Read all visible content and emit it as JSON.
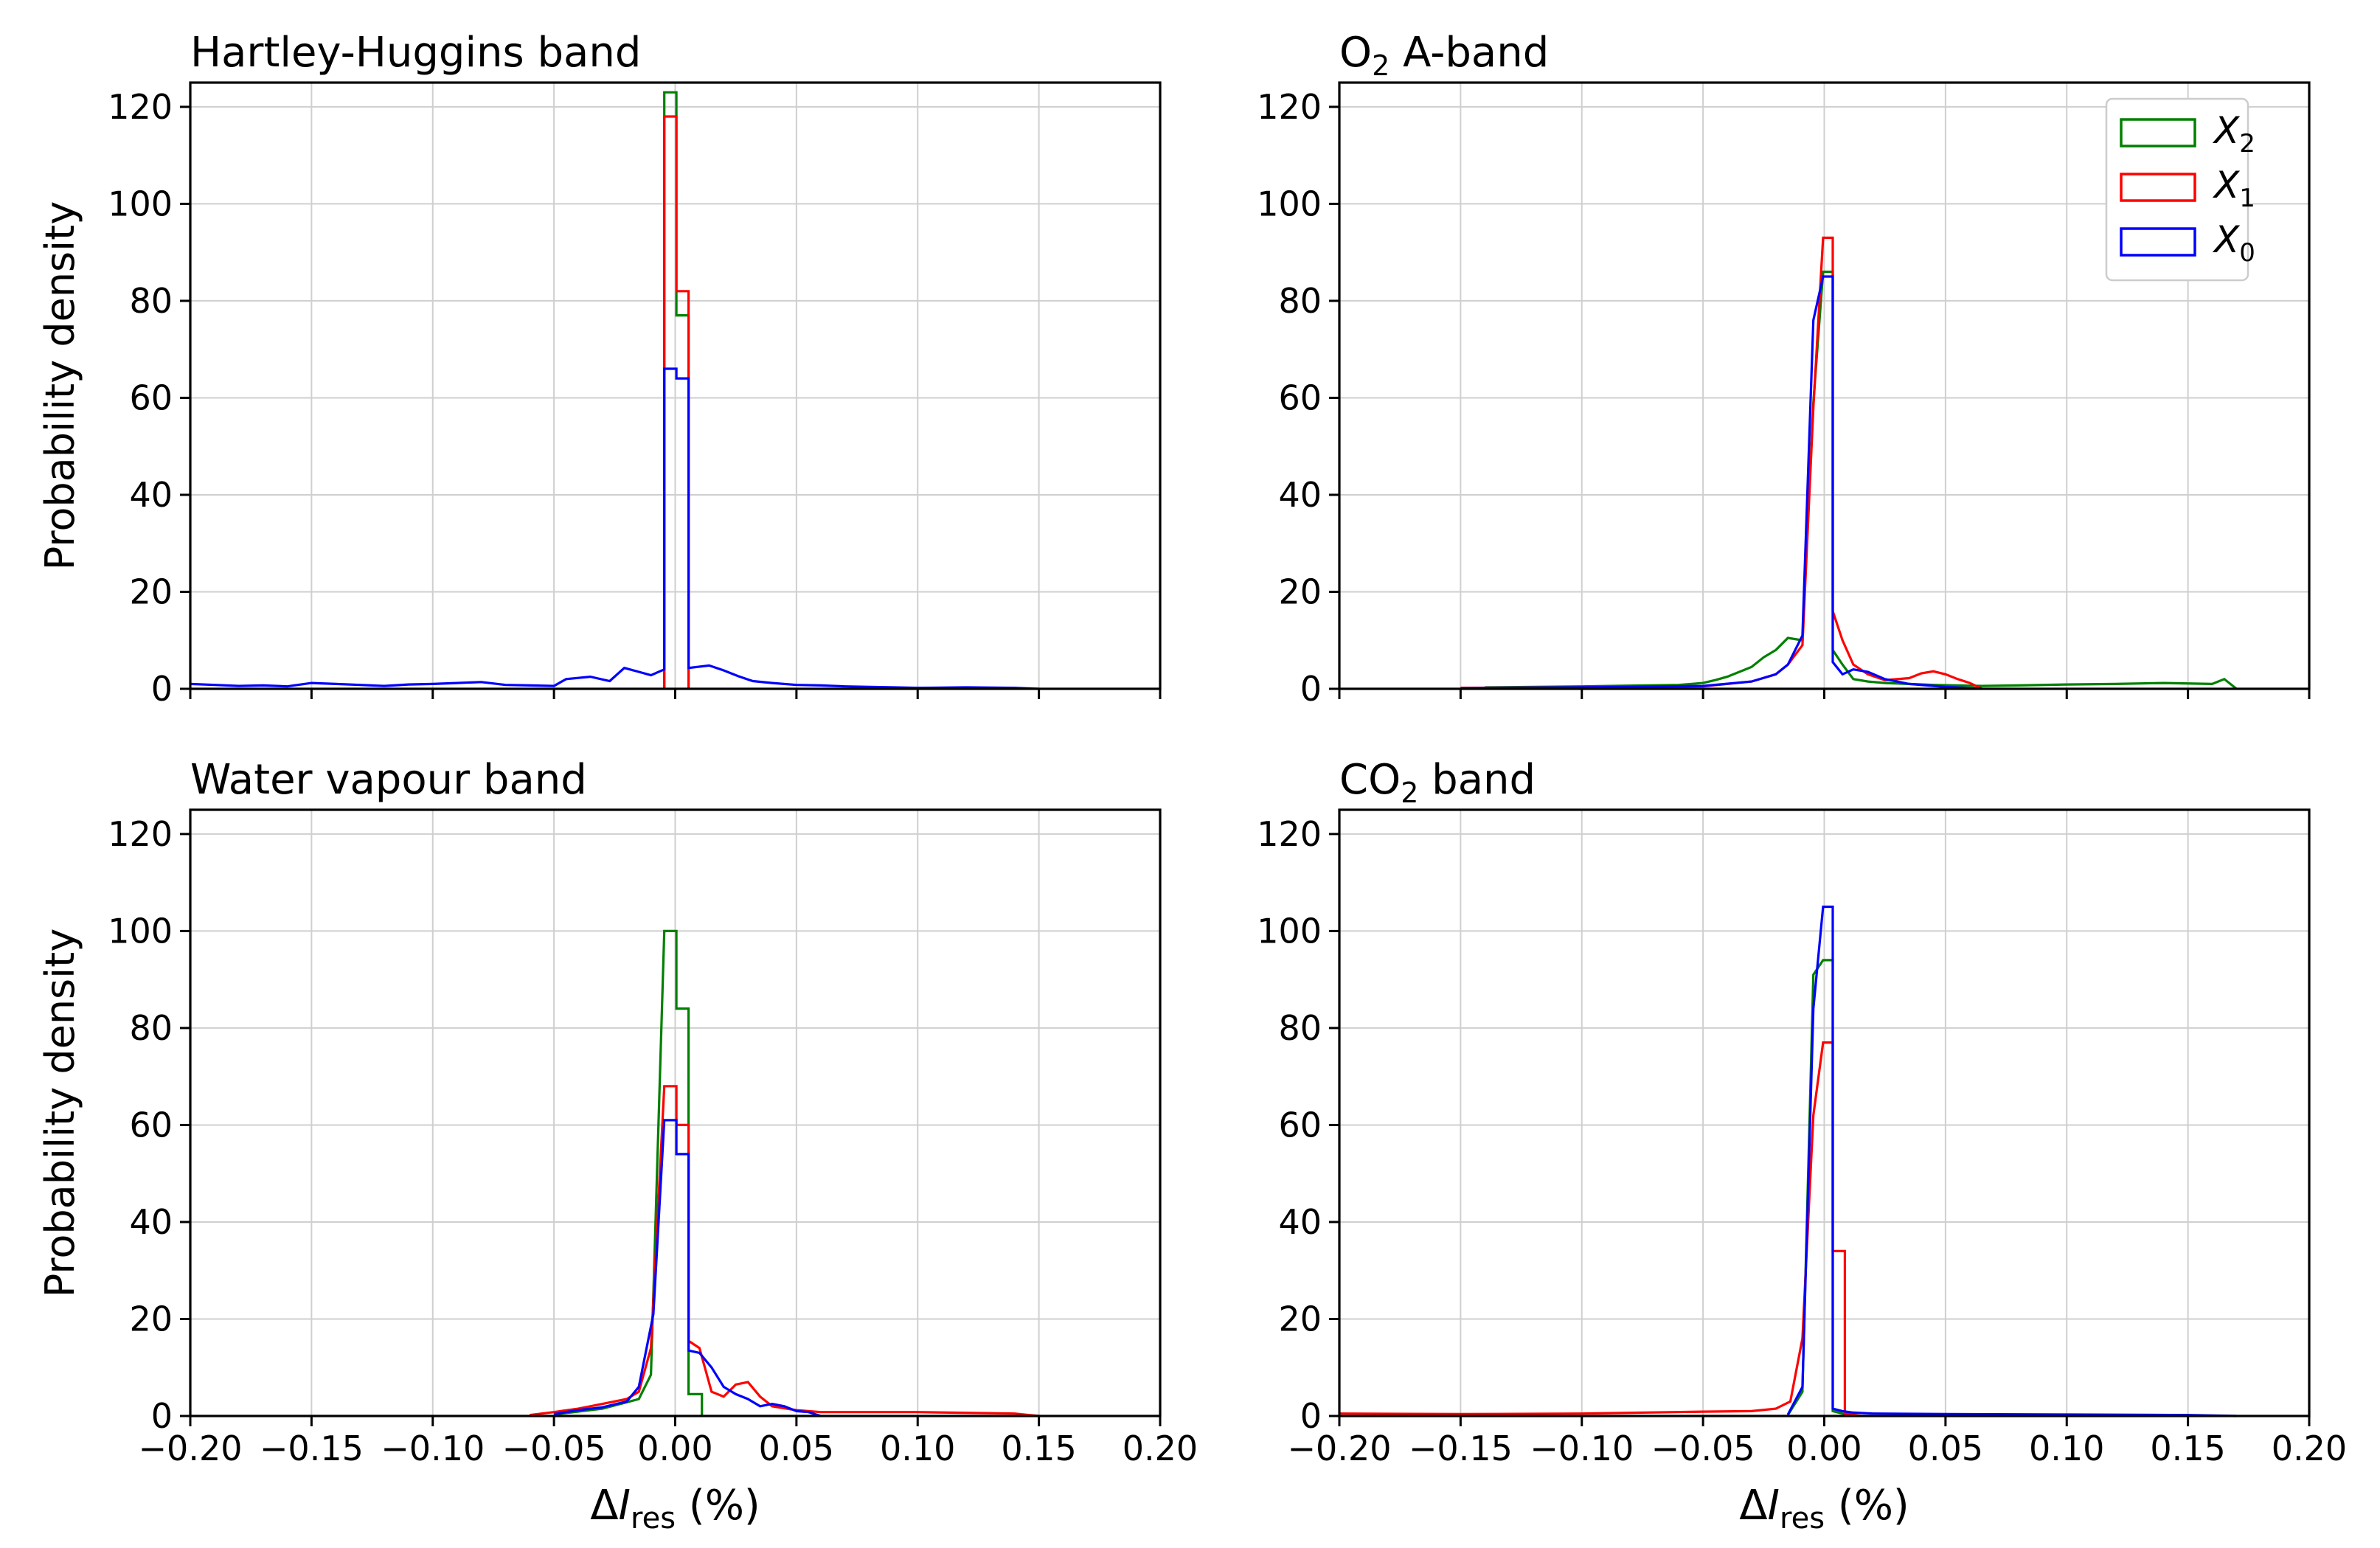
{
  "figure": {
    "shared_xlabel": "ΔI_res (%)",
    "ylabel": "Probability density",
    "xlim": [
      -0.2,
      0.2
    ],
    "ylim": [
      0,
      125
    ],
    "xticks": [
      -0.2,
      -0.15,
      -0.1,
      -0.05,
      0.0,
      0.05,
      0.1,
      0.15,
      0.2
    ],
    "xtick_labels": [
      "−0.20",
      "−0.15",
      "−0.10",
      "−0.05",
      "0.00",
      "0.05",
      "0.10",
      "0.15",
      "0.20"
    ],
    "yticks": [
      0,
      20,
      40,
      60,
      80,
      100,
      120
    ],
    "ytick_labels": [
      "0",
      "20",
      "40",
      "60",
      "80",
      "100",
      "120"
    ],
    "legend": [
      {
        "key": "X2",
        "label": "X",
        "sub": "2",
        "color": "#008000"
      },
      {
        "key": "X1",
        "label": "X",
        "sub": "1",
        "color": "#ff0000"
      },
      {
        "key": "X0",
        "label": "X",
        "sub": "0",
        "color": "#0000ff"
      }
    ],
    "legend_location": "top-right of O2 A-band panel"
  },
  "chart_data": [
    {
      "type": "bar",
      "histtype": "step",
      "title": "Hartley-Huggins band",
      "xlabel": "",
      "ylabel": "Probability density",
      "xlim": [
        -0.2,
        0.2
      ],
      "ylim": [
        0,
        125
      ],
      "grid": true,
      "series": [
        {
          "name": "X2",
          "color": "#008000",
          "points": [
            [
              -0.0045,
              0
            ],
            [
              -0.0045,
              123
            ],
            [
              0.0005,
              123
            ],
            [
              0.0005,
              77
            ],
            [
              0.0055,
              77
            ],
            [
              0.0055,
              0
            ]
          ]
        },
        {
          "name": "X1",
          "color": "#ff0000",
          "points": [
            [
              -0.0045,
              0
            ],
            [
              -0.0045,
              118
            ],
            [
              0.0005,
              118
            ],
            [
              0.0005,
              82
            ],
            [
              0.0055,
              82
            ],
            [
              0.0055,
              0
            ]
          ]
        },
        {
          "name": "X0",
          "color": "#0000ff",
          "points": [
            [
              -0.2,
              1.0
            ],
            [
              -0.19,
              0.8
            ],
            [
              -0.18,
              0.6
            ],
            [
              -0.17,
              0.7
            ],
            [
              -0.16,
              0.5
            ],
            [
              -0.15,
              1.2
            ],
            [
              -0.14,
              1.0
            ],
            [
              -0.13,
              0.8
            ],
            [
              -0.12,
              0.6
            ],
            [
              -0.11,
              0.9
            ],
            [
              -0.1,
              1.0
            ],
            [
              -0.09,
              1.2
            ],
            [
              -0.08,
              1.4
            ],
            [
              -0.07,
              0.8
            ],
            [
              -0.06,
              0.7
            ],
            [
              -0.05,
              0.6
            ],
            [
              -0.045,
              2.0
            ],
            [
              -0.035,
              2.5
            ],
            [
              -0.027,
              1.6
            ],
            [
              -0.021,
              4.3
            ],
            [
              -0.015,
              3.5
            ],
            [
              -0.01,
              2.8
            ],
            [
              -0.0045,
              4.0
            ],
            [
              -0.0045,
              66
            ],
            [
              0.0005,
              66
            ],
            [
              0.0005,
              64
            ],
            [
              0.0055,
              64
            ],
            [
              0.0055,
              4.3
            ],
            [
              0.014,
              4.8
            ],
            [
              0.02,
              3.8
            ],
            [
              0.026,
              2.6
            ],
            [
              0.032,
              1.6
            ],
            [
              0.04,
              1.2
            ],
            [
              0.05,
              0.8
            ],
            [
              0.06,
              0.7
            ],
            [
              0.07,
              0.5
            ],
            [
              0.08,
              0.4
            ],
            [
              0.09,
              0.3
            ],
            [
              0.1,
              0.2
            ],
            [
              0.12,
              0.3
            ],
            [
              0.14,
              0.2
            ],
            [
              0.15,
              0
            ]
          ]
        }
      ]
    },
    {
      "type": "bar",
      "histtype": "step",
      "title": "O2 A-band",
      "title_main": "O",
      "title_sub": "2",
      "title_rest": " A-band",
      "xlabel": "",
      "ylabel": "",
      "xlim": [
        -0.2,
        0.2
      ],
      "ylim": [
        0,
        125
      ],
      "grid": true,
      "series": [
        {
          "name": "X2",
          "color": "#008000",
          "points": [
            [
              -0.14,
              0.3
            ],
            [
              -0.1,
              0.5
            ],
            [
              -0.06,
              0.8
            ],
            [
              -0.05,
              1.2
            ],
            [
              -0.045,
              1.8
            ],
            [
              -0.04,
              2.5
            ],
            [
              -0.035,
              3.5
            ],
            [
              -0.03,
              4.5
            ],
            [
              -0.025,
              6.5
            ],
            [
              -0.02,
              8.0
            ],
            [
              -0.015,
              10.5
            ],
            [
              -0.009,
              10
            ],
            [
              -0.0045,
              59
            ],
            [
              -0.0005,
              86
            ],
            [
              0.0035,
              86
            ],
            [
              0.0035,
              8
            ],
            [
              0.0075,
              5
            ],
            [
              0.012,
              2
            ],
            [
              0.018,
              1.5
            ],
            [
              0.025,
              1.2
            ],
            [
              0.035,
              1.0
            ],
            [
              0.045,
              0.8
            ],
            [
              0.065,
              0.6
            ],
            [
              0.08,
              0.7
            ],
            [
              0.1,
              0.9
            ],
            [
              0.12,
              1.0
            ],
            [
              0.14,
              1.2
            ],
            [
              0.16,
              1.0
            ],
            [
              0.165,
              2.0
            ],
            [
              0.17,
              0
            ]
          ]
        },
        {
          "name": "X1",
          "color": "#ff0000",
          "points": [
            [
              -0.15,
              0.2
            ],
            [
              -0.1,
              0.3
            ],
            [
              -0.05,
              0.5
            ],
            [
              -0.03,
              1.5
            ],
            [
              -0.02,
              3.0
            ],
            [
              -0.015,
              5
            ],
            [
              -0.009,
              9
            ],
            [
              -0.0045,
              58
            ],
            [
              -0.0005,
              93
            ],
            [
              0.0035,
              93
            ],
            [
              0.0035,
              16
            ],
            [
              0.0075,
              10
            ],
            [
              0.012,
              5
            ],
            [
              0.018,
              3
            ],
            [
              0.025,
              1.8
            ],
            [
              0.035,
              2.2
            ],
            [
              0.04,
              3.2
            ],
            [
              0.045,
              3.6
            ],
            [
              0.05,
              3.0
            ],
            [
              0.055,
              2.0
            ],
            [
              0.06,
              1.2
            ],
            [
              0.065,
              0
            ]
          ]
        },
        {
          "name": "X0",
          "color": "#0000ff",
          "points": [
            [
              -0.15,
              0.1
            ],
            [
              -0.1,
              0.3
            ],
            [
              -0.05,
              0.6
            ],
            [
              -0.03,
              1.5
            ],
            [
              -0.02,
              3
            ],
            [
              -0.015,
              5
            ],
            [
              -0.009,
              11
            ],
            [
              -0.0045,
              76
            ],
            [
              -0.0005,
              85
            ],
            [
              0.0035,
              85
            ],
            [
              0.0035,
              5.5
            ],
            [
              0.0075,
              3
            ],
            [
              0.012,
              4
            ],
            [
              0.018,
              3.5
            ],
            [
              0.025,
              2
            ],
            [
              0.035,
              1
            ],
            [
              0.05,
              0.4
            ],
            [
              0.065,
              0
            ]
          ]
        }
      ]
    },
    {
      "type": "bar",
      "histtype": "step",
      "title": "Water vapour band",
      "xlabel": "ΔI_res (%)",
      "ylabel": "Probability density",
      "xlim": [
        -0.2,
        0.2
      ],
      "ylim": [
        0,
        125
      ],
      "grid": true,
      "series": [
        {
          "name": "X2",
          "color": "#008000",
          "points": [
            [
              -0.05,
              0.3
            ],
            [
              -0.03,
              1.5
            ],
            [
              -0.015,
              3.5
            ],
            [
              -0.01,
              8.5
            ],
            [
              -0.0045,
              100
            ],
            [
              0.0005,
              100
            ],
            [
              0.0005,
              84
            ],
            [
              0.0055,
              84
            ],
            [
              0.0055,
              4.5
            ],
            [
              0.011,
              4.5
            ],
            [
              0.011,
              0
            ]
          ]
        },
        {
          "name": "X1",
          "color": "#ff0000",
          "points": [
            [
              -0.06,
              0.2
            ],
            [
              -0.05,
              0.8
            ],
            [
              -0.04,
              1.5
            ],
            [
              -0.03,
              2.5
            ],
            [
              -0.02,
              3.5
            ],
            [
              -0.015,
              5.0
            ],
            [
              -0.01,
              14
            ],
            [
              -0.0045,
              68
            ],
            [
              0.0005,
              68
            ],
            [
              0.0005,
              60
            ],
            [
              0.0055,
              60
            ],
            [
              0.0055,
              15.5
            ],
            [
              0.01,
              14
            ],
            [
              0.015,
              5
            ],
            [
              0.02,
              4
            ],
            [
              0.025,
              6.5
            ],
            [
              0.03,
              7
            ],
            [
              0.035,
              4
            ],
            [
              0.04,
              2
            ],
            [
              0.05,
              1.2
            ],
            [
              0.06,
              0.8
            ],
            [
              0.1,
              0.8
            ],
            [
              0.14,
              0.5
            ],
            [
              0.15,
              0
            ]
          ]
        },
        {
          "name": "X0",
          "color": "#0000ff",
          "points": [
            [
              -0.05,
              0.4
            ],
            [
              -0.04,
              1.2
            ],
            [
              -0.03,
              1.8
            ],
            [
              -0.02,
              3.0
            ],
            [
              -0.015,
              6
            ],
            [
              -0.009,
              21
            ],
            [
              -0.0045,
              61
            ],
            [
              0.0005,
              61
            ],
            [
              0.0005,
              54
            ],
            [
              0.0055,
              54
            ],
            [
              0.0055,
              13.5
            ],
            [
              0.01,
              13
            ],
            [
              0.015,
              10
            ],
            [
              0.02,
              6
            ],
            [
              0.025,
              4.5
            ],
            [
              0.03,
              3.5
            ],
            [
              0.035,
              2
            ],
            [
              0.04,
              2.5
            ],
            [
              0.045,
              2
            ],
            [
              0.05,
              1
            ],
            [
              0.055,
              0.8
            ],
            [
              0.06,
              0
            ]
          ]
        }
      ]
    },
    {
      "type": "bar",
      "histtype": "step",
      "title": "CO2 band",
      "title_main": "CO",
      "title_sub": "2",
      "title_rest": " band",
      "xlabel": "ΔI_res (%)",
      "ylabel": "",
      "xlim": [
        -0.2,
        0.2
      ],
      "ylim": [
        0,
        125
      ],
      "grid": true,
      "series": [
        {
          "name": "X2",
          "color": "#008000",
          "points": [
            [
              -0.015,
              0.2
            ],
            [
              -0.009,
              5
            ],
            [
              -0.0045,
              91
            ],
            [
              -0.0005,
              94
            ],
            [
              0.0035,
              94
            ],
            [
              0.0035,
              1
            ],
            [
              0.0075,
              0.5
            ],
            [
              0.012,
              0
            ]
          ]
        },
        {
          "name": "X1",
          "color": "#ff0000",
          "points": [
            [
              -0.2,
              0.5
            ],
            [
              -0.15,
              0.4
            ],
            [
              -0.1,
              0.5
            ],
            [
              -0.05,
              0.9
            ],
            [
              -0.03,
              1.0
            ],
            [
              -0.02,
              1.5
            ],
            [
              -0.014,
              3
            ],
            [
              -0.009,
              16
            ],
            [
              -0.0045,
              62
            ],
            [
              -0.0005,
              77
            ],
            [
              0.0035,
              77
            ],
            [
              0.0035,
              34
            ],
            [
              0.0085,
              34
            ],
            [
              0.0085,
              0.5
            ],
            [
              0.015,
              0
            ]
          ]
        },
        {
          "name": "X0",
          "color": "#0000ff",
          "points": [
            [
              -0.015,
              0.3
            ],
            [
              -0.009,
              6
            ],
            [
              -0.0045,
              84
            ],
            [
              -0.0005,
              105
            ],
            [
              0.0035,
              105
            ],
            [
              0.0035,
              1.5
            ],
            [
              0.0075,
              1.0
            ],
            [
              0.012,
              0.7
            ],
            [
              0.02,
              0.5
            ],
            [
              0.05,
              0.4
            ],
            [
              0.1,
              0.3
            ],
            [
              0.15,
              0.2
            ],
            [
              0.17,
              0
            ]
          ]
        }
      ]
    }
  ]
}
